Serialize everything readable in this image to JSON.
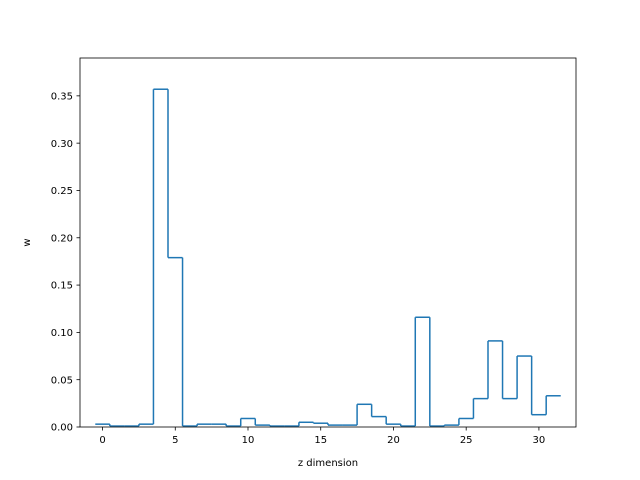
{
  "chart_data": {
    "type": "step",
    "title": "",
    "xlabel": "z dimension",
    "ylabel": "w",
    "xlim": [
      -1.55,
      32.55
    ],
    "ylim": [
      0,
      0.39
    ],
    "xticks": [
      0,
      5,
      10,
      15,
      20,
      25,
      30
    ],
    "yticks": [
      0.0,
      0.05,
      0.1,
      0.15,
      0.2,
      0.25,
      0.3,
      0.35
    ],
    "ytick_labels": [
      "0.00",
      "0.05",
      "0.10",
      "0.15",
      "0.20",
      "0.25",
      "0.30",
      "0.35"
    ],
    "series": [
      {
        "color": "#1f77b4",
        "x": [
          0,
          1,
          2,
          3,
          4,
          5,
          6,
          7,
          8,
          9,
          10,
          11,
          12,
          13,
          14,
          15,
          16,
          17,
          18,
          19,
          20,
          21,
          22,
          23,
          24,
          25,
          26,
          27,
          28,
          29,
          30,
          31
        ],
        "values": [
          0.003,
          0.001,
          0.001,
          0.003,
          0.357,
          0.179,
          0.001,
          0.003,
          0.003,
          0.001,
          0.009,
          0.002,
          0.001,
          0.001,
          0.005,
          0.004,
          0.002,
          0.002,
          0.024,
          0.011,
          0.003,
          0.001,
          0.116,
          0.001,
          0.002,
          0.009,
          0.03,
          0.091,
          0.03,
          0.075,
          0.013,
          0.033
        ]
      }
    ]
  }
}
